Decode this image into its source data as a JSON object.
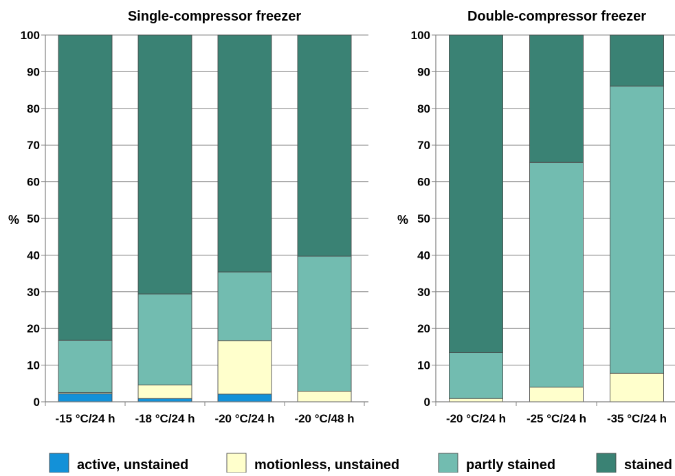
{
  "chart_data": [
    {
      "type": "bar",
      "stacked": true,
      "title": "Single-compressor freezer",
      "ylabel": "%",
      "xlabel": "",
      "ylim": [
        0,
        100
      ],
      "yticks": [
        0,
        10,
        20,
        30,
        40,
        50,
        60,
        70,
        80,
        90,
        100
      ],
      "grid": true,
      "categories": [
        "-15 °C/24 h",
        "-18 °C/24 h",
        "-20 °C/24 h",
        "-20 °C/48 h"
      ],
      "series": [
        {
          "name": "active, unstained",
          "values": [
            2.2,
            0.9,
            2.1,
            0
          ]
        },
        {
          "name": "motionless, unstained",
          "values": [
            0.3,
            3.7,
            14.6,
            2.9
          ]
        },
        {
          "name": "partly stained",
          "values": [
            14.3,
            24.8,
            18.7,
            36.8
          ]
        },
        {
          "name": "stained",
          "values": [
            83.2,
            70.6,
            64.6,
            60.3
          ]
        }
      ]
    },
    {
      "type": "bar",
      "stacked": true,
      "title": "Double-compressor freezer",
      "ylabel": "%",
      "xlabel": "",
      "ylim": [
        0,
        100
      ],
      "yticks": [
        0,
        10,
        20,
        30,
        40,
        50,
        60,
        70,
        80,
        90,
        100
      ],
      "grid": true,
      "categories": [
        "-20 °C/24 h",
        "-25 °C/24 h",
        "-35 °C/24 h"
      ],
      "series": [
        {
          "name": "active, unstained",
          "values": [
            0,
            0,
            0
          ]
        },
        {
          "name": "motionless, unstained",
          "values": [
            0.9,
            4.0,
            7.8
          ]
        },
        {
          "name": "partly stained",
          "values": [
            12.5,
            61.3,
            78.3
          ]
        },
        {
          "name": "stained",
          "values": [
            86.6,
            34.7,
            13.9
          ]
        }
      ]
    }
  ],
  "legend": {
    "placement": "bottom",
    "items": [
      {
        "label": "active, unstained",
        "color": "#1391d8"
      },
      {
        "label": "motionless, unstained",
        "color": "#ffffcc"
      },
      {
        "label": "partly stained",
        "color": "#72bcb0"
      },
      {
        "label": "stained",
        "color": "#3a8274"
      }
    ]
  },
  "colors": {
    "active, unstained": "#1391d8",
    "motionless, unstained": "#ffffcc",
    "partly stained": "#72bcb0",
    "stained": "#3a8274",
    "bar_outline": "#4a4a4a",
    "grid": "#808080",
    "axis": "#808080"
  }
}
